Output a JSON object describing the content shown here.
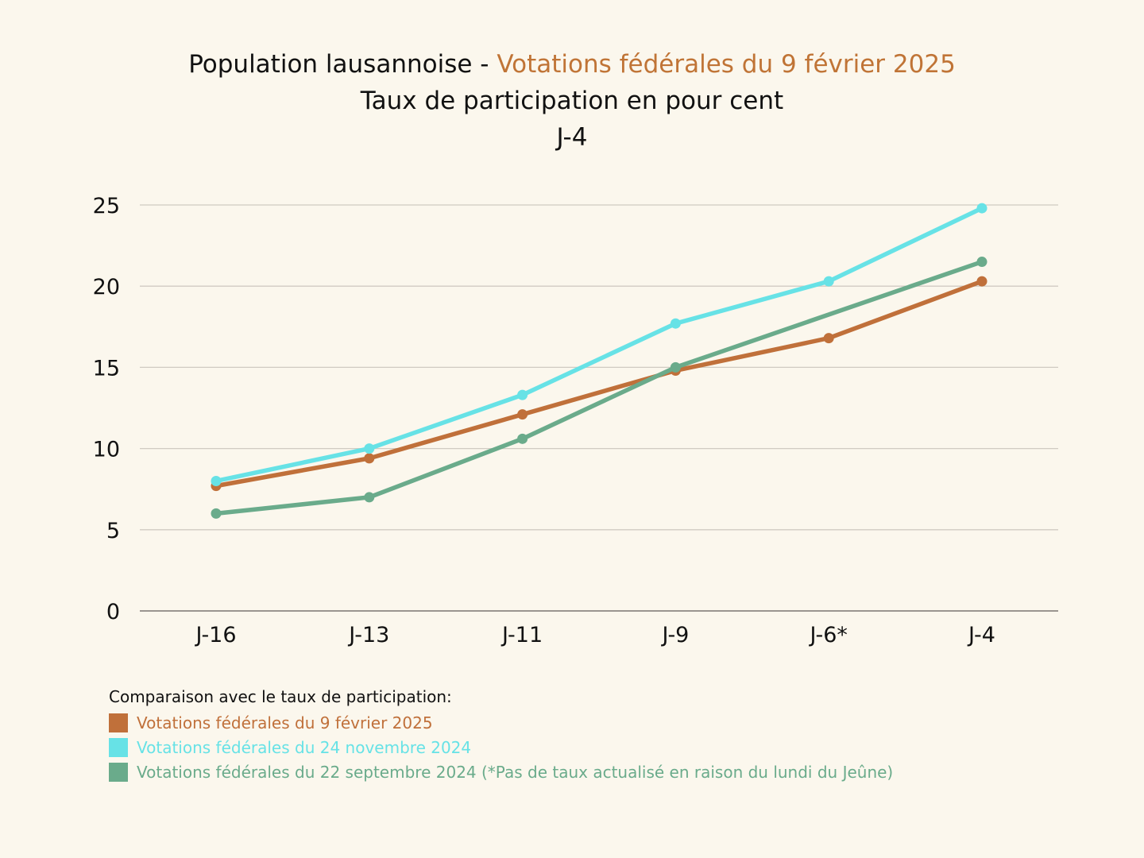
{
  "title": {
    "line1_prefix": "Population lausannoise - ",
    "line1_highlight": "Votations fédérales du 9 février 2025",
    "line2": "Taux de participation en pour cent",
    "line3": "J-4"
  },
  "colors": {
    "background": "#fbf7ed",
    "highlight": "#c07436",
    "grid": "#d0cbc2",
    "axis": "#9a9590"
  },
  "chart_data": {
    "type": "line",
    "categories": [
      "J-16",
      "J-13",
      "J-11",
      "J-9",
      "J-6*",
      "J-4"
    ],
    "ylim": [
      0,
      25
    ],
    "yticks": [
      0,
      5,
      10,
      15,
      20,
      25
    ],
    "grid": true,
    "legend_position": "bottom-left",
    "series": [
      {
        "name": "Votations fédérales du 9 février 2025",
        "color": "#c0703a",
        "values": [
          7.7,
          9.4,
          12.1,
          14.8,
          16.8,
          20.3
        ]
      },
      {
        "name": "Votations fédérales du 24 novembre 2024",
        "color": "#67e2e6",
        "values": [
          8.0,
          10.0,
          13.3,
          17.7,
          20.3,
          24.8
        ]
      },
      {
        "name": "Votations fédérales du 22 septembre 2024 (*Pas de taux actualisé en raison du lundi du Jeûne)",
        "color": "#6aab8b",
        "values": [
          6.0,
          7.0,
          10.6,
          15.0,
          null,
          21.5
        ]
      }
    ]
  },
  "legend": {
    "heading": "Comparaison avec le taux de participation:"
  }
}
